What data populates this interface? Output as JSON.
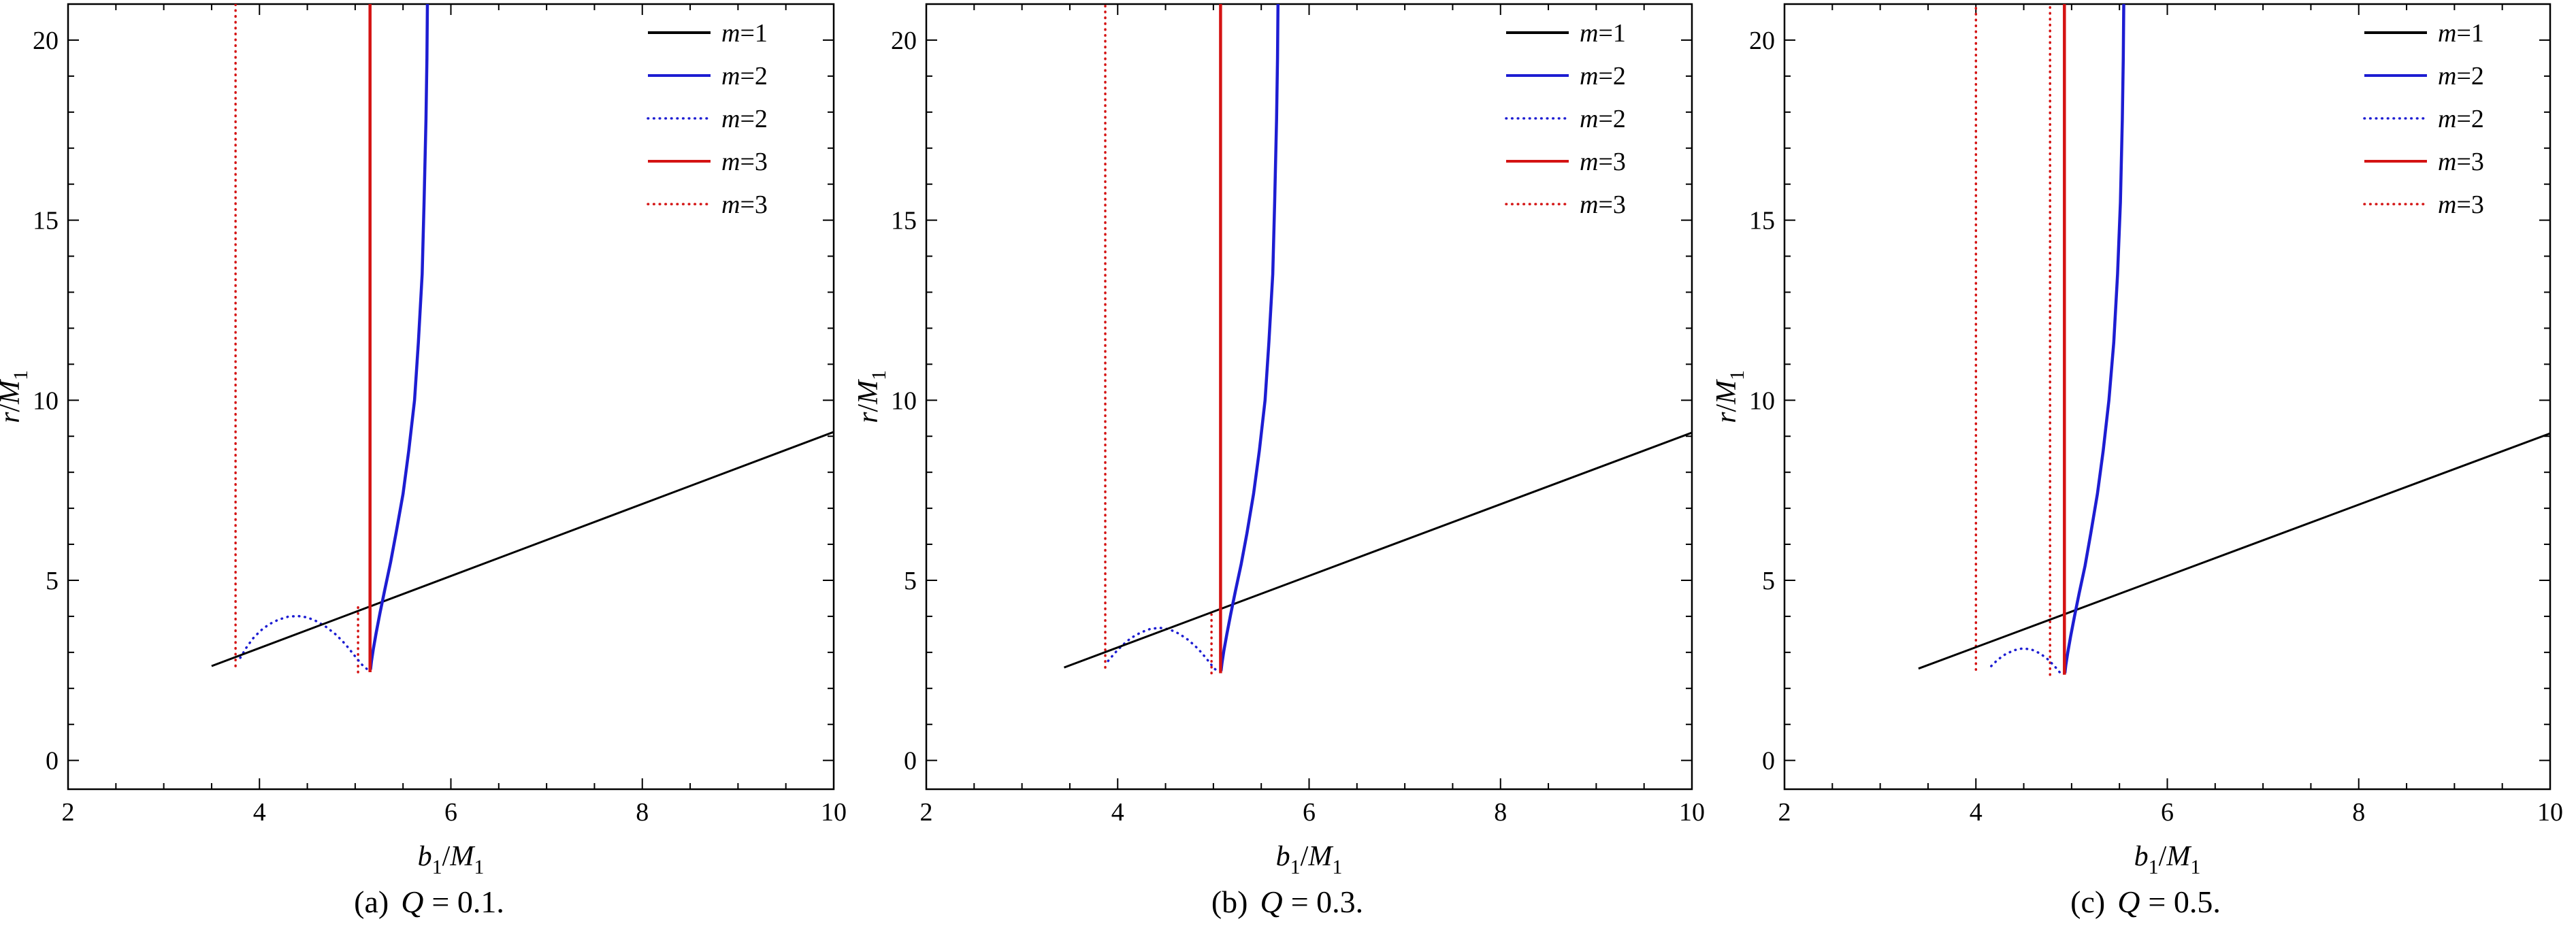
{
  "figure": {
    "background": "#ffffff",
    "frame_color": "#000000",
    "colors": {
      "black": "#000000",
      "blue": "#1d1dd2",
      "red": "#d41313"
    },
    "axes": {
      "xlabel": "b1/M1",
      "xlabel_rich": [
        [
          "b",
          "i"
        ],
        [
          "1",
          "sub"
        ],
        [
          "/",
          ""
        ],
        [
          "M",
          "i"
        ],
        [
          "1",
          "sub"
        ]
      ],
      "ylabel": "r/M1",
      "ylabel_rich": [
        [
          "r",
          "i"
        ],
        [
          "/",
          ""
        ],
        [
          "M",
          "i"
        ],
        [
          "1",
          "sub"
        ]
      ],
      "xlim": [
        2,
        10
      ],
      "ylim": [
        -0.8,
        21
      ],
      "xticks": [
        2,
        4,
        6,
        8,
        10
      ],
      "yticks": [
        0,
        5,
        10,
        15,
        20
      ],
      "x_minor_step": 0.5,
      "y_minor_step": 1
    },
    "legend": {
      "position": "top-right",
      "entries": [
        {
          "label": "m=1",
          "color": "black",
          "style": "solid"
        },
        {
          "label": "m=2",
          "color": "blue",
          "style": "solid"
        },
        {
          "label": "m=2",
          "color": "blue",
          "style": "dotted"
        },
        {
          "label": "m=3",
          "color": "red",
          "style": "solid"
        },
        {
          "label": "m=3",
          "color": "red",
          "style": "dotted"
        }
      ]
    }
  },
  "chart_data": [
    {
      "type": "line",
      "caption": {
        "index": "(a)",
        "var": "Q",
        "value": "= 0.1."
      },
      "series": [
        {
          "name": "m3-dotted-asymptote-left",
          "legend": "m=3",
          "color": "red",
          "style": "dotted",
          "points": [
            [
              3.75,
              2.62
            ],
            [
              3.75,
              21
            ]
          ]
        },
        {
          "name": "m3-dotted-asymptote-right",
          "legend": "m=3",
          "color": "red",
          "style": "dotted",
          "points": [
            [
              5.03,
              2.45
            ],
            [
              5.03,
              4.35
            ]
          ]
        },
        {
          "name": "m2-dotted-curve",
          "legend": "m=2",
          "color": "blue",
          "style": "dotted",
          "points": [
            [
              3.8,
              2.85
            ],
            [
              3.86,
              3.12
            ],
            [
              3.93,
              3.38
            ],
            [
              4.01,
              3.6
            ],
            [
              4.1,
              3.78
            ],
            [
              4.2,
              3.91
            ],
            [
              4.3,
              3.99
            ],
            [
              4.4,
              4.01
            ],
            [
              4.5,
              3.97
            ],
            [
              4.6,
              3.86
            ],
            [
              4.7,
              3.7
            ],
            [
              4.8,
              3.49
            ],
            [
              4.9,
              3.22
            ],
            [
              4.99,
              2.92
            ],
            [
              5.07,
              2.66
            ],
            [
              5.13,
              2.52
            ]
          ]
        },
        {
          "name": "m1-line",
          "legend": "m=1",
          "color": "black",
          "style": "solid",
          "points": [
            [
              3.5,
              2.62
            ],
            [
              10,
              9.12
            ]
          ]
        },
        {
          "name": "m2-solid-curve",
          "legend": "m=2",
          "color": "blue",
          "style": "solid",
          "points": [
            [
              5.16,
              2.52
            ],
            [
              5.17,
              2.75
            ],
            [
              5.19,
              3.1
            ],
            [
              5.22,
              3.55
            ],
            [
              5.26,
              4.1
            ],
            [
              5.31,
              4.75
            ],
            [
              5.37,
              5.5
            ],
            [
              5.43,
              6.35
            ],
            [
              5.5,
              7.4
            ],
            [
              5.56,
              8.6
            ],
            [
              5.62,
              10.0
            ],
            [
              5.66,
              11.6
            ],
            [
              5.7,
              13.5
            ],
            [
              5.72,
              15.5
            ],
            [
              5.74,
              17.8
            ],
            [
              5.75,
              19.5
            ],
            [
              5.755,
              21
            ]
          ]
        },
        {
          "name": "m3-solid-asymptote",
          "legend": "m=3",
          "color": "red",
          "style": "solid",
          "points": [
            [
              5.155,
              2.45
            ],
            [
              5.155,
              21
            ]
          ]
        }
      ]
    },
    {
      "type": "line",
      "caption": {
        "index": "(b)",
        "var": "Q",
        "value": "= 0.3."
      },
      "series": [
        {
          "name": "m3-dotted-asymptote-left",
          "legend": "m=3",
          "color": "red",
          "style": "dotted",
          "points": [
            [
              3.87,
              2.58
            ],
            [
              3.87,
              21
            ]
          ]
        },
        {
          "name": "m3-dotted-asymptote-right",
          "legend": "m=3",
          "color": "red",
          "style": "dotted",
          "points": [
            [
              4.98,
              2.42
            ],
            [
              4.98,
              4.05
            ]
          ]
        },
        {
          "name": "m2-dotted-curve",
          "legend": "m=2",
          "color": "blue",
          "style": "dotted",
          "points": [
            [
              3.9,
              2.76
            ],
            [
              3.97,
              2.98
            ],
            [
              4.05,
              3.2
            ],
            [
              4.14,
              3.4
            ],
            [
              4.24,
              3.55
            ],
            [
              4.34,
              3.65
            ],
            [
              4.44,
              3.68
            ],
            [
              4.54,
              3.64
            ],
            [
              4.64,
              3.52
            ],
            [
              4.74,
              3.34
            ],
            [
              4.84,
              3.1
            ],
            [
              4.93,
              2.82
            ],
            [
              5.01,
              2.55
            ],
            [
              5.05,
              2.46
            ]
          ]
        },
        {
          "name": "m1-line",
          "legend": "m=1",
          "color": "black",
          "style": "solid",
          "points": [
            [
              3.44,
              2.58
            ],
            [
              10,
              9.1
            ]
          ]
        },
        {
          "name": "m2-solid-curve",
          "legend": "m=2",
          "color": "blue",
          "style": "solid",
          "points": [
            [
              5.08,
              2.48
            ],
            [
              5.09,
              2.7
            ],
            [
              5.11,
              3.05
            ],
            [
              5.14,
              3.5
            ],
            [
              5.18,
              4.05
            ],
            [
              5.23,
              4.7
            ],
            [
              5.29,
              5.45
            ],
            [
              5.35,
              6.3
            ],
            [
              5.42,
              7.4
            ],
            [
              5.48,
              8.6
            ],
            [
              5.54,
              10.0
            ],
            [
              5.58,
              11.6
            ],
            [
              5.62,
              13.5
            ],
            [
              5.64,
              15.5
            ],
            [
              5.66,
              17.8
            ],
            [
              5.67,
              19.5
            ],
            [
              5.675,
              21
            ]
          ]
        },
        {
          "name": "m3-solid-asymptote",
          "legend": "m=3",
          "color": "red",
          "style": "solid",
          "points": [
            [
              5.075,
              2.42
            ],
            [
              5.075,
              21
            ]
          ]
        }
      ]
    },
    {
      "type": "line",
      "caption": {
        "index": "(c)",
        "var": "Q",
        "value": "= 0.5."
      },
      "series": [
        {
          "name": "m3-dotted-asymptote-left",
          "legend": "m=3",
          "color": "red",
          "style": "dotted",
          "points": [
            [
              4.0,
              2.52
            ],
            [
              4.0,
              21
            ]
          ]
        },
        {
          "name": "m3-dotted-asymptote-right",
          "legend": "m=3",
          "color": "red",
          "style": "dotted",
          "points": [
            [
              4.775,
              2.38
            ],
            [
              4.775,
              21
            ]
          ]
        },
        {
          "name": "m2-dotted-curve",
          "legend": "m=2",
          "color": "blue",
          "style": "dotted",
          "points": [
            [
              4.16,
              2.62
            ],
            [
              4.23,
              2.8
            ],
            [
              4.31,
              2.95
            ],
            [
              4.4,
              3.06
            ],
            [
              4.49,
              3.11
            ],
            [
              4.58,
              3.08
            ],
            [
              4.67,
              2.97
            ],
            [
              4.76,
              2.79
            ],
            [
              4.84,
              2.56
            ],
            [
              4.89,
              2.4
            ]
          ]
        },
        {
          "name": "m1-line",
          "legend": "m=1",
          "color": "black",
          "style": "solid",
          "points": [
            [
              3.4,
              2.55
            ],
            [
              10,
              9.08
            ]
          ]
        },
        {
          "name": "m2-solid-curve",
          "legend": "m=2",
          "color": "blue",
          "style": "solid",
          "points": [
            [
              4.93,
              2.42
            ],
            [
              4.94,
              2.65
            ],
            [
              4.96,
              3.0
            ],
            [
              4.99,
              3.45
            ],
            [
              5.03,
              4.0
            ],
            [
              5.08,
              4.65
            ],
            [
              5.14,
              5.4
            ],
            [
              5.2,
              6.3
            ],
            [
              5.27,
              7.4
            ],
            [
              5.33,
              8.6
            ],
            [
              5.39,
              10.0
            ],
            [
              5.44,
              11.6
            ],
            [
              5.48,
              13.5
            ],
            [
              5.51,
              15.5
            ],
            [
              5.53,
              17.8
            ],
            [
              5.54,
              19.5
            ],
            [
              5.545,
              21
            ]
          ]
        },
        {
          "name": "m3-solid-asymptote",
          "legend": "m=3",
          "color": "red",
          "style": "solid",
          "points": [
            [
              4.925,
              2.38
            ],
            [
              4.925,
              21
            ]
          ]
        }
      ]
    }
  ]
}
